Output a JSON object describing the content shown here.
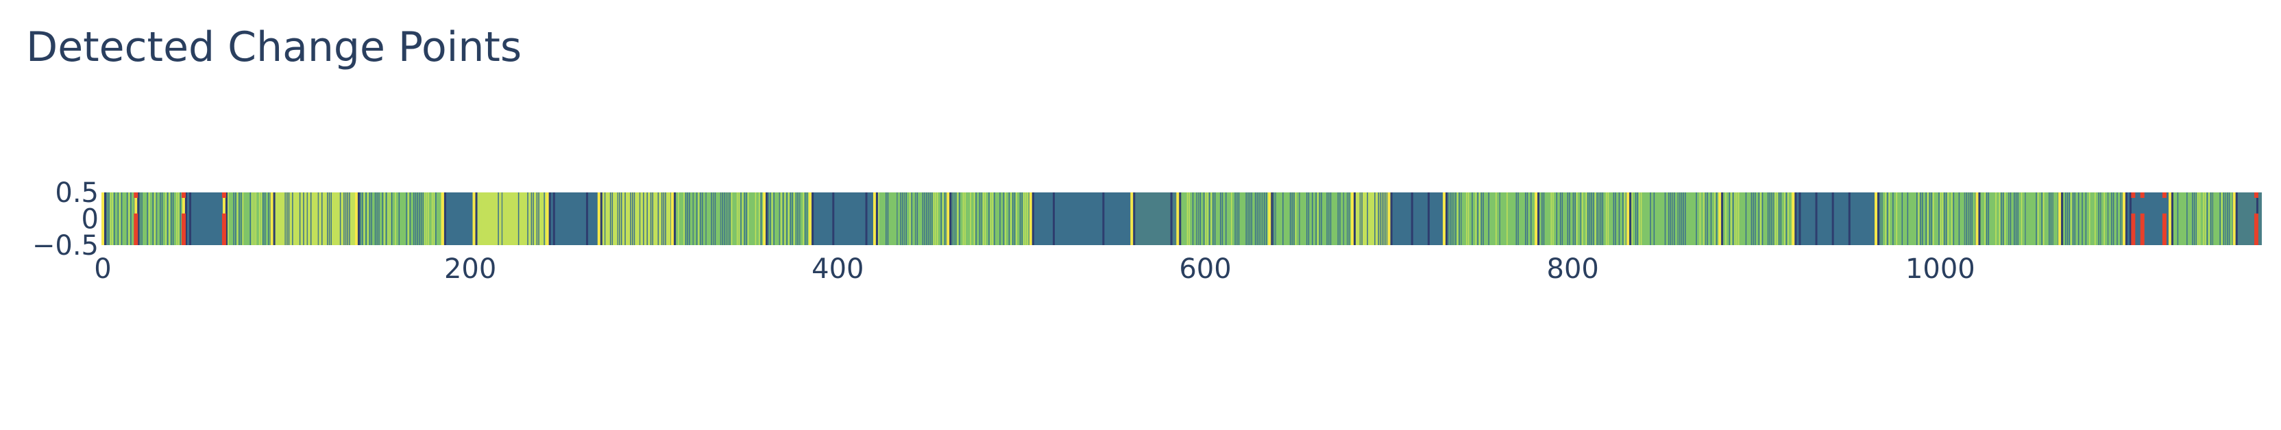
{
  "chart_data": {
    "type": "heatmap",
    "title": "Detected Change Points",
    "xlabel": "",
    "ylabel": "",
    "xlim": [
      0,
      1175
    ],
    "ylim": [
      -0.5,
      0.5
    ],
    "x_ticks": [
      "0",
      "200",
      "400",
      "600",
      "800",
      "1000"
    ],
    "x_tick_values": [
      0,
      200,
      400,
      600,
      800,
      1000
    ],
    "y_ticks": [
      "0.5",
      "0",
      "−0.5"
    ],
    "y_tick_values": [
      0.5,
      0,
      -0.5
    ],
    "grid": false,
    "legend": "none",
    "colorscale": [
      "#3b4f8a",
      "#3d6e8a",
      "#3f8a8a",
      "#53a87f",
      "#8fcb5e",
      "#c9e250",
      "#f0e442"
    ],
    "segment_colors": [
      "#7fc469",
      "#c3e05a",
      "#3b6f8c",
      "#4a7e86",
      "#9ed06a"
    ],
    "change_points": [
      18,
      44,
      66,
      1105,
      1110,
      1122,
      1172
    ],
    "change_point_color": "#e8402a",
    "boundary_color": "#f6e84a",
    "dark_stripe_color": "#2e3d6e",
    "segments": [
      {
        "start": 0,
        "end": 18,
        "pattern": "stripe",
        "color": 0
      },
      {
        "start": 18,
        "end": 44,
        "pattern": "stripe",
        "color": 0
      },
      {
        "start": 44,
        "end": 66,
        "pattern": "solid",
        "color": 2
      },
      {
        "start": 66,
        "end": 92,
        "pattern": "stripe",
        "color": 0
      },
      {
        "start": 92,
        "end": 138,
        "pattern": "stripe",
        "color": 1
      },
      {
        "start": 138,
        "end": 185,
        "pattern": "stripe",
        "color": 0
      },
      {
        "start": 185,
        "end": 202,
        "pattern": "solid",
        "color": 2
      },
      {
        "start": 202,
        "end": 242,
        "pattern": "stripe",
        "color": 1
      },
      {
        "start": 242,
        "end": 270,
        "pattern": "solid",
        "color": 2
      },
      {
        "start": 270,
        "end": 310,
        "pattern": "stripe",
        "color": 1
      },
      {
        "start": 310,
        "end": 360,
        "pattern": "stripe",
        "color": 0
      },
      {
        "start": 360,
        "end": 385,
        "pattern": "stripe",
        "color": 0
      },
      {
        "start": 385,
        "end": 420,
        "pattern": "solid",
        "color": 2
      },
      {
        "start": 420,
        "end": 460,
        "pattern": "stripe",
        "color": 0
      },
      {
        "start": 460,
        "end": 505,
        "pattern": "stripe",
        "color": 0
      },
      {
        "start": 505,
        "end": 560,
        "pattern": "solid",
        "color": 2
      },
      {
        "start": 560,
        "end": 585,
        "pattern": "solid",
        "color": 3
      },
      {
        "start": 585,
        "end": 635,
        "pattern": "stripe",
        "color": 0
      },
      {
        "start": 635,
        "end": 680,
        "pattern": "stripe",
        "color": 0
      },
      {
        "start": 680,
        "end": 700,
        "pattern": "stripe",
        "color": 1
      },
      {
        "start": 700,
        "end": 730,
        "pattern": "solid",
        "color": 2
      },
      {
        "start": 730,
        "end": 780,
        "pattern": "stripe",
        "color": 0
      },
      {
        "start": 780,
        "end": 830,
        "pattern": "stripe",
        "color": 0
      },
      {
        "start": 830,
        "end": 880,
        "pattern": "stripe",
        "color": 0
      },
      {
        "start": 880,
        "end": 920,
        "pattern": "stripe",
        "color": 0
      },
      {
        "start": 920,
        "end": 965,
        "pattern": "solid",
        "color": 2
      },
      {
        "start": 965,
        "end": 1020,
        "pattern": "stripe",
        "color": 0
      },
      {
        "start": 1020,
        "end": 1065,
        "pattern": "stripe",
        "color": 0
      },
      {
        "start": 1065,
        "end": 1100,
        "pattern": "stripe",
        "color": 0
      },
      {
        "start": 1100,
        "end": 1125,
        "pattern": "solid",
        "color": 2
      },
      {
        "start": 1125,
        "end": 1160,
        "pattern": "stripe",
        "color": 0
      },
      {
        "start": 1160,
        "end": 1175,
        "pattern": "solid",
        "color": 3
      }
    ]
  }
}
